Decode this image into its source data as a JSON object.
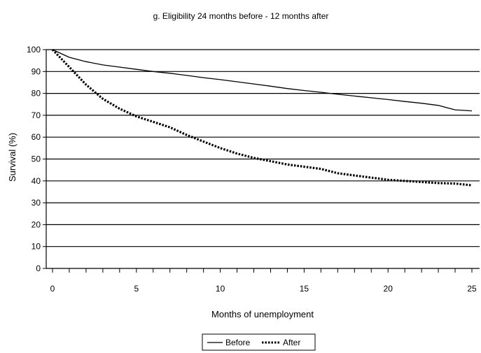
{
  "chart_data": {
    "type": "line",
    "title": "g. Eligibility 24 months before - 12 months after",
    "xlabel": "Months of unemployment",
    "ylabel": "Survival (%)",
    "xlim": [
      0,
      25
    ],
    "ylim": [
      0,
      100
    ],
    "xticks": [
      0,
      5,
      10,
      15,
      20,
      25
    ],
    "yticks": [
      0,
      10,
      20,
      30,
      40,
      50,
      60,
      70,
      80,
      90,
      100
    ],
    "grid": "horizontal",
    "legend_position": "bottom",
    "series": [
      {
        "name": "Before",
        "style": "solid",
        "color": "#000000",
        "x": [
          0,
          1,
          2,
          3,
          4,
          5,
          6,
          7,
          8,
          9,
          10,
          11,
          12,
          13,
          14,
          15,
          16,
          17,
          18,
          19,
          20,
          21,
          22,
          23,
          24,
          25
        ],
        "y": [
          100,
          96.5,
          94.5,
          93,
          92,
          91,
          90,
          89.2,
          88.2,
          87.2,
          86.3,
          85.3,
          84.3,
          83.3,
          82.2,
          81.3,
          80.5,
          79.6,
          78.8,
          78,
          77.2,
          76.3,
          75.5,
          74.5,
          72.5,
          72
        ]
      },
      {
        "name": "After",
        "style": "dotted",
        "color": "#000000",
        "x": [
          0,
          1,
          2,
          3,
          4,
          5,
          6,
          7,
          8,
          9,
          10,
          11,
          12,
          13,
          14,
          15,
          16,
          17,
          18,
          19,
          20,
          21,
          22,
          23,
          24,
          25
        ],
        "y": [
          100,
          92,
          84,
          77.5,
          73,
          69.5,
          67,
          64.5,
          61,
          58,
          55,
          52.5,
          50.5,
          49,
          47.5,
          46.5,
          45.5,
          43.5,
          42.5,
          41.5,
          40.5,
          40,
          39.5,
          39,
          38.8,
          38
        ]
      }
    ]
  }
}
